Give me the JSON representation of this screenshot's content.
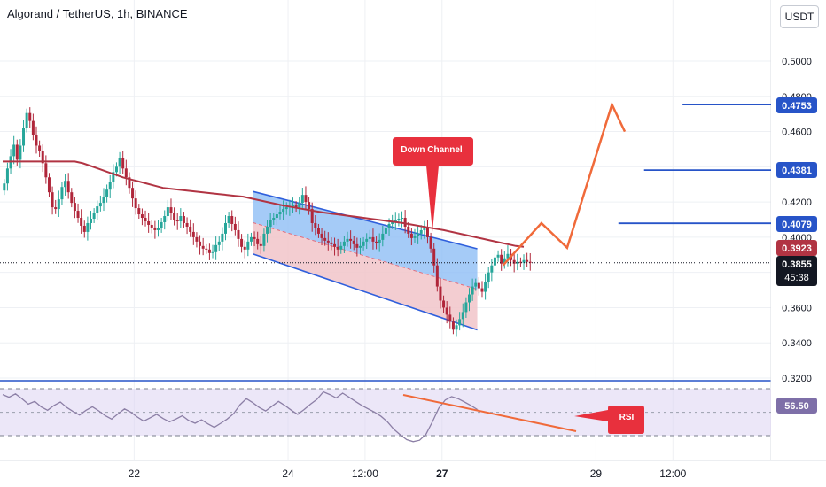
{
  "header": {
    "title": "Algorand / TetherUS, 1h, BINANCE",
    "unit": "USDT"
  },
  "colors": {
    "up": "#26a69a",
    "down": "#b0263a",
    "ma": "#b13443",
    "channel_line": "#2f5fdc",
    "channel_top_fill": "#8fbef5",
    "channel_bottom_fill": "#f1c4c9",
    "forecast": "#f06a3a",
    "target_line": "#2754c8",
    "rsi_line": "#8c7fa6",
    "rsi_band": "#dcd4f2",
    "callout": "#e8303d"
  },
  "chart_data": [
    {
      "type": "candlestick",
      "title": "Algorand / TetherUS, 1h, BINANCE",
      "y_unit": "USDT",
      "ylim": [
        0.32,
        0.512
      ],
      "y_ticks": [
        "0.5000",
        "0.4800",
        "0.4600",
        "0.4200",
        "0.4000",
        "0.3600",
        "0.3400",
        "0.3200"
      ],
      "x_ticks": [
        "22",
        "24",
        "12:00",
        "27",
        "29",
        "12:00"
      ],
      "x_tick_positions_hours": [
        41,
        89,
        113,
        137,
        185,
        209
      ],
      "x_range_hours": [
        0,
        236
      ],
      "grid": true,
      "ohlc_close": [
        0.4305,
        0.439,
        0.446,
        0.4525,
        0.444,
        0.452,
        0.462,
        0.4705,
        0.466,
        0.458,
        0.452,
        0.449,
        0.442,
        0.434,
        0.4255,
        0.417,
        0.416,
        0.4215,
        0.4285,
        0.432,
        0.4255,
        0.4195,
        0.415,
        0.411,
        0.4065,
        0.403,
        0.408,
        0.4105,
        0.414,
        0.4175,
        0.4195,
        0.423,
        0.427,
        0.4315,
        0.437,
        0.44,
        0.445,
        0.439,
        0.434,
        0.428,
        0.422,
        0.4165,
        0.413,
        0.411,
        0.409,
        0.407,
        0.4055,
        0.404,
        0.405,
        0.4085,
        0.412,
        0.417,
        0.414,
        0.41,
        0.409,
        0.412,
        0.408,
        0.406,
        0.403,
        0.4,
        0.3975,
        0.395,
        0.3935,
        0.393,
        0.391,
        0.3915,
        0.3955,
        0.3975,
        0.402,
        0.408,
        0.412,
        0.4075,
        0.404,
        0.399,
        0.3945,
        0.393,
        0.3975,
        0.4,
        0.399,
        0.396,
        0.395,
        0.402,
        0.406,
        0.4095,
        0.411,
        0.413,
        0.4145,
        0.416,
        0.417,
        0.4175,
        0.418,
        0.417,
        0.4195,
        0.424,
        0.42,
        0.416,
        0.408,
        0.405,
        0.402,
        0.3995,
        0.398,
        0.397,
        0.396,
        0.3945,
        0.393,
        0.395,
        0.3975,
        0.399,
        0.398,
        0.396,
        0.394,
        0.395,
        0.3975,
        0.399,
        0.4,
        0.3975,
        0.3965,
        0.3985,
        0.402,
        0.405,
        0.4075,
        0.4085,
        0.4095,
        0.4105,
        0.411,
        0.406,
        0.402,
        0.3995,
        0.4005,
        0.402,
        0.404,
        0.4055,
        0.4,
        0.3935,
        0.384,
        0.372,
        0.364,
        0.36,
        0.356,
        0.352,
        0.3475,
        0.35,
        0.3535,
        0.3575,
        0.363,
        0.3675,
        0.372,
        0.374,
        0.371,
        0.369,
        0.3745,
        0.38,
        0.384,
        0.3885,
        0.39,
        0.385,
        0.388,
        0.3905,
        0.387,
        0.385,
        0.386,
        0.3855,
        0.387,
        0.386,
        0.3855
      ],
      "moving_average": {
        "values": [
          0.443,
          0.443,
          0.443,
          0.443,
          0.443,
          0.443,
          0.443,
          0.443,
          0.443,
          0.443,
          0.442,
          0.4404,
          0.4388,
          0.4372,
          0.4356,
          0.434,
          0.4328,
          0.4316,
          0.4304,
          0.4292,
          0.428,
          0.4275,
          0.427,
          0.4265,
          0.426,
          0.4255,
          0.425,
          0.4245,
          0.424,
          0.4235,
          0.423,
          0.422,
          0.421,
          0.42,
          0.419,
          0.418,
          0.4172,
          0.4164,
          0.4156,
          0.4148,
          0.414,
          0.4134,
          0.4128,
          0.4122,
          0.4116,
          0.411,
          0.4104,
          0.4098,
          0.4092,
          0.4086,
          0.408,
          0.4072,
          0.4064,
          0.4056,
          0.4048,
          0.404,
          0.403,
          0.402,
          0.401,
          0.4,
          0.399,
          0.398,
          0.397,
          0.396,
          0.395,
          0.3945
        ],
        "start_hour": 0,
        "step_hours": 2.5
      }
    },
    {
      "type": "line",
      "series": [
        {
          "name": "RSI",
          "values": [
            59.2,
            58.8,
            59.3,
            58.6,
            57.8,
            58.2,
            57.4,
            56.9,
            57.6,
            58.1,
            57.3,
            56.7,
            56.2,
            56.9,
            57.4,
            56.8,
            56.1,
            55.6,
            56.4,
            57.1,
            56.6,
            55.9,
            55.3,
            55.8,
            56.3,
            55.7,
            55.2,
            55.6,
            56.1,
            55.4,
            55.0,
            55.5,
            54.9,
            54.4,
            55.0,
            55.6,
            56.4,
            57.7,
            58.6,
            58.0,
            57.3,
            56.8,
            57.5,
            58.2,
            57.6,
            56.9,
            56.3,
            57.0,
            57.8,
            58.5,
            59.6,
            59.2,
            58.7,
            59.4,
            58.8,
            58.2,
            57.6,
            57.1,
            56.6,
            56.0,
            55.2,
            54.1,
            53.3,
            52.6,
            52.3,
            52.5,
            53.4,
            55.2,
            57.2,
            58.4,
            58.9,
            58.6,
            58.1,
            57.6,
            57.0
          ],
          "start_hour": 0,
          "step_hours": 2.0
        }
      ],
      "ylim": [
        52.0,
        61.5
      ],
      "y_ticks": [
        "60.05",
        "53.18"
      ],
      "grid": true
    }
  ],
  "annotations": {
    "callout_down_channel": "Down Channel",
    "callout_rsi": "RSI",
    "price_labels": {
      "target_high": "0.4753",
      "target_mid": "0.4381",
      "target_low": "0.4079",
      "ma_value": "0.3923",
      "last_price": "0.3855",
      "countdown": "45:38",
      "rsi_value": "56.50"
    },
    "target_levels": [
      0.4753,
      0.4381,
      0.4079
    ],
    "channel": {
      "upper_start": [
        78,
        0.426
      ],
      "upper_end": [
        148,
        0.3934
      ],
      "lower_start": [
        78,
        0.3905
      ],
      "lower_end": [
        148,
        0.3474
      ],
      "mid_start": [
        78,
        0.4083
      ],
      "mid_end": [
        148,
        0.3704
      ]
    },
    "forecast_path": [
      [
        156,
        0.384
      ],
      [
        168,
        0.408
      ],
      [
        176,
        0.394
      ],
      [
        190,
        0.4753
      ],
      [
        194,
        0.46
      ]
    ]
  }
}
